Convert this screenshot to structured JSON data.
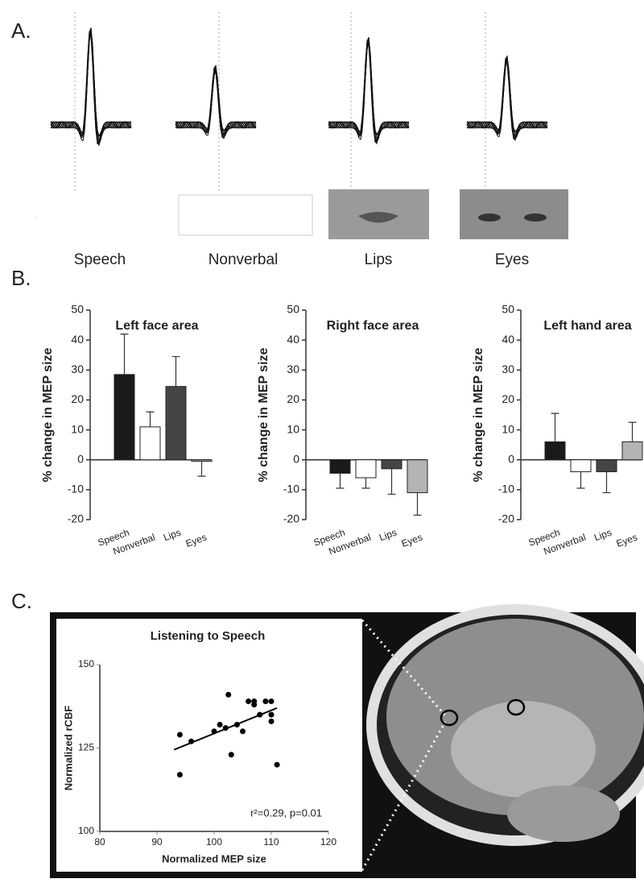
{
  "figure": {
    "panel_labels": [
      "A.",
      "B.",
      "C."
    ],
    "stimuli": [
      "Speech",
      "Nonverbal",
      "Lips",
      "Eyes"
    ]
  },
  "chart_data": [
    {
      "type": "bar",
      "title": "Left face area",
      "y_label": "% change in MEP size",
      "categories": [
        "Speech",
        "Nonverbal",
        "Lips",
        "Eyes"
      ],
      "values": [
        28.5,
        11,
        24.5,
        -0.5
      ],
      "errors": [
        13.5,
        5,
        10,
        5
      ],
      "colors": [
        "#1a1a1a",
        "#ffffff",
        "#454545",
        "#b4b4b4"
      ],
      "ylim": [
        -20,
        50
      ],
      "yticks": [
        -20,
        -10,
        0,
        10,
        20,
        30,
        40,
        50
      ]
    },
    {
      "type": "bar",
      "title": "Right face area",
      "y_label": "% change in MEP size",
      "categories": [
        "Speech",
        "Nonverbal",
        "Lips",
        "Eyes"
      ],
      "values": [
        -4.5,
        -6,
        -3,
        -11
      ],
      "errors": [
        5,
        3.5,
        8.5,
        7.5
      ],
      "colors": [
        "#1a1a1a",
        "#ffffff",
        "#454545",
        "#b4b4b4"
      ],
      "ylim": [
        -20,
        50
      ],
      "yticks": [
        -20,
        -10,
        0,
        10,
        20,
        30,
        40,
        50
      ]
    },
    {
      "type": "bar",
      "title": "Left hand area",
      "y_label": "% change in MEP size",
      "categories": [
        "Speech",
        "Nonverbal",
        "Lips",
        "Eyes"
      ],
      "values": [
        6,
        -4,
        -4,
        6
      ],
      "errors": [
        9.5,
        5.5,
        7,
        6.5
      ],
      "colors": [
        "#1a1a1a",
        "#ffffff",
        "#454545",
        "#b4b4b4"
      ],
      "ylim": [
        -20,
        50
      ],
      "yticks": [
        -20,
        -10,
        0,
        10,
        20,
        30,
        40,
        50
      ]
    },
    {
      "type": "scatter",
      "title": "Listening to Speech",
      "x_label": "Normalized MEP size",
      "y_label": "Normalized rCBF",
      "annotation": "r²=0.29, p=0.01",
      "x": [
        94,
        94,
        96,
        100,
        101,
        102,
        102.5,
        103,
        104,
        105,
        106,
        107,
        107,
        108,
        109,
        110,
        110,
        110,
        111
      ],
      "y": [
        129,
        117,
        127,
        130,
        132,
        131,
        141,
        123,
        132,
        130,
        139,
        138,
        139,
        135,
        139,
        139,
        133,
        135,
        120
      ],
      "trend": {
        "x": [
          93,
          111
        ],
        "y": [
          124.5,
          137
        ]
      },
      "color": "#000000",
      "xlim": [
        80,
        120
      ],
      "xticks": [
        80,
        90,
        100,
        110,
        120
      ],
      "ylim": [
        100,
        150
      ],
      "yticks": [
        100,
        125,
        150
      ]
    }
  ]
}
